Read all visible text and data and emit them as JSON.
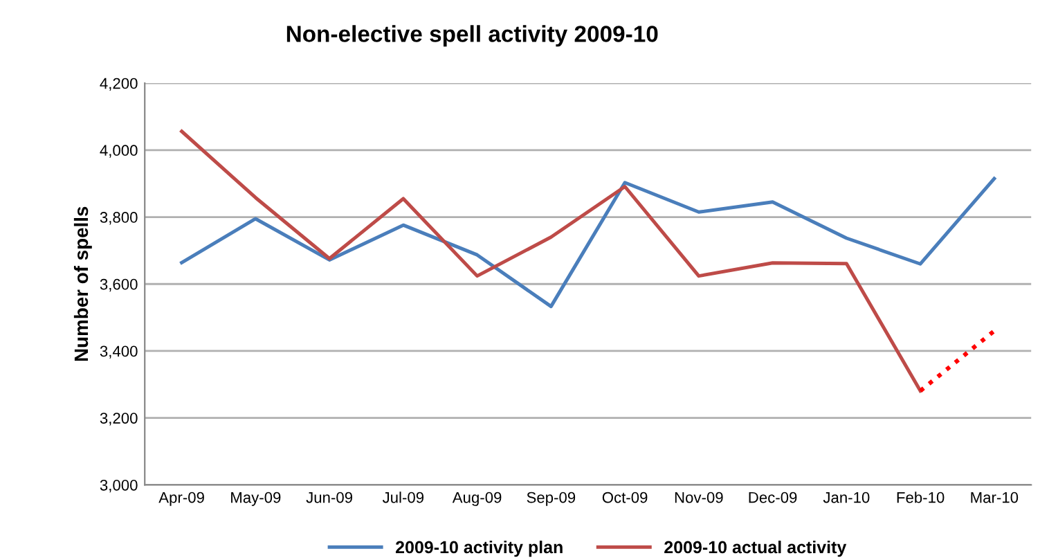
{
  "chart_data": {
    "type": "line",
    "title": "Non-elective spell activity 2009-10",
    "ylabel": "Number of spells",
    "categories": [
      "Apr-09",
      "May-09",
      "Jun-09",
      "Jul-09",
      "Aug-09",
      "Sep-09",
      "Oct-09",
      "Nov-09",
      "Dec-09",
      "Jan-10",
      "Feb-10",
      "Mar-10"
    ],
    "series": [
      {
        "name": "2009-10 activity plan",
        "color": "#4a7ebb",
        "values": [
          3664,
          3795,
          3672,
          3776,
          3687,
          3533,
          3903,
          3815,
          3845,
          3737,
          3660,
          3915
        ]
      },
      {
        "name": "2009-10 actual activity",
        "color": "#be4b48",
        "values": [
          4056,
          3858,
          3676,
          3855,
          3624,
          3740,
          3891,
          3624,
          3663,
          3661,
          3281,
          null
        ]
      },
      {
        "color": "#ff0000",
        "line_style": "dotted",
        "values": [
          null,
          null,
          null,
          null,
          null,
          null,
          null,
          null,
          null,
          null,
          3281,
          3460
        ]
      }
    ],
    "ylim": [
      3000,
      4200
    ],
    "yticks": [
      {
        "value": 3000,
        "label": "3,000"
      },
      {
        "value": 3200,
        "label": "3,200"
      },
      {
        "value": 3400,
        "label": "3,400"
      },
      {
        "value": 3600,
        "label": "3,600"
      },
      {
        "value": 3800,
        "label": "3,800"
      },
      {
        "value": 4000,
        "label": "4,000"
      },
      {
        "value": 4200,
        "label": "4,200"
      }
    ],
    "grid": "y",
    "legend": "bottom",
    "line_style": "solid",
    "marker": "none"
  }
}
